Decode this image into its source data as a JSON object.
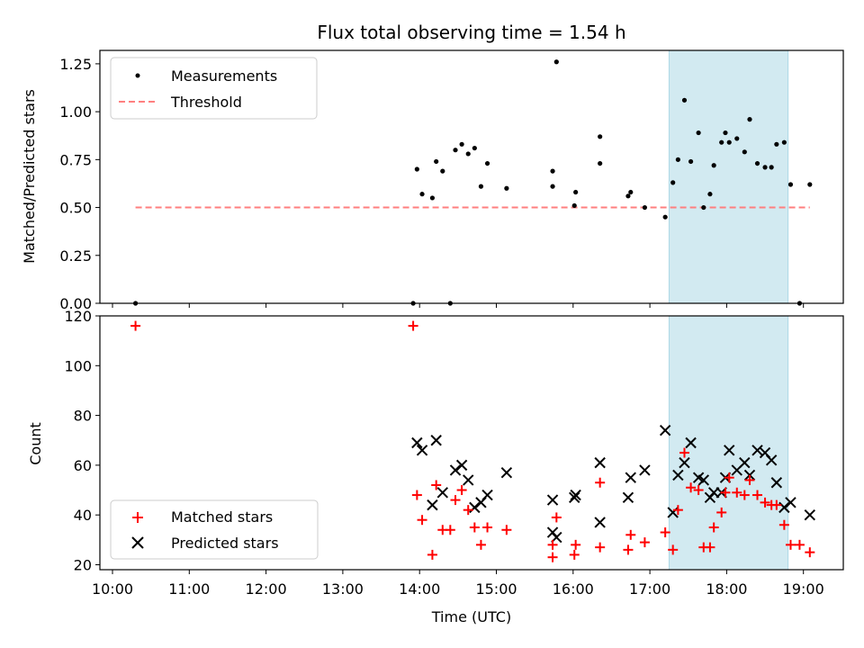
{
  "chart_data": [
    {
      "panel": "ratio",
      "type": "scatter",
      "title": "Flux total observing time = 1.54 h",
      "ylabel": "Matched/Predicted stars",
      "xlabel": "",
      "ylim": [
        0,
        1.32
      ],
      "yticks": [
        "0.00",
        "0.25",
        "0.50",
        "0.75",
        "1.00",
        "1.25"
      ],
      "legend_position": "upper-left",
      "series": [
        {
          "name": "Measurements",
          "color": "#000000",
          "marker": "dot",
          "x": [
            "10:18",
            "13:55",
            "13:58",
            "14:02",
            "14:10",
            "14:13",
            "14:18",
            "14:24",
            "14:28",
            "14:33",
            "14:38",
            "14:43",
            "14:48",
            "14:53",
            "15:08",
            "15:44",
            "15:44",
            "15:47",
            "16:01",
            "16:02",
            "16:21",
            "16:21",
            "16:43",
            "16:45",
            "16:56",
            "17:12",
            "17:18",
            "17:22",
            "17:27",
            "17:32",
            "17:38",
            "17:42",
            "17:47",
            "17:50",
            "17:56",
            "17:59",
            "18:02",
            "18:08",
            "18:14",
            "18:18",
            "18:24",
            "18:30",
            "18:35",
            "18:39",
            "18:45",
            "18:50",
            "18:57",
            "19:05"
          ],
          "y": [
            0.0,
            0.0,
            0.7,
            0.57,
            0.55,
            0.74,
            0.69,
            0.0,
            0.8,
            0.83,
            0.78,
            0.81,
            0.61,
            0.73,
            0.6,
            0.69,
            0.61,
            1.26,
            0.51,
            0.58,
            0.73,
            0.87,
            0.56,
            0.58,
            0.5,
            0.45,
            0.63,
            0.75,
            1.06,
            0.74,
            0.89,
            0.5,
            0.57,
            0.72,
            0.84,
            0.89,
            0.84,
            0.86,
            0.79,
            0.96,
            0.73,
            0.71,
            0.71,
            0.83,
            0.84,
            0.62,
            0.0,
            0.62
          ]
        },
        {
          "name": "Threshold",
          "color": "#ff7f7f",
          "style": "dashed",
          "x": [
            "10:18",
            "19:05"
          ],
          "y": [
            0.5,
            0.5
          ]
        }
      ],
      "highlight_span": {
        "x_start": "17:15",
        "x_end": "18:48",
        "color": "#add8e6"
      }
    },
    {
      "panel": "counts",
      "type": "scatter",
      "ylabel": "Count",
      "xlabel": "Time (UTC)",
      "ylim": [
        18,
        120
      ],
      "yticks": [
        "20",
        "40",
        "60",
        "80",
        "100",
        "120"
      ],
      "xticks": [
        "10:00",
        "11:00",
        "12:00",
        "13:00",
        "14:00",
        "15:00",
        "16:00",
        "17:00",
        "18:00",
        "19:00"
      ],
      "legend_position": "lower-left",
      "series": [
        {
          "name": "Matched stars",
          "color": "#ff0000",
          "marker": "plus",
          "x": [
            "10:18",
            "13:55",
            "13:58",
            "14:02",
            "14:10",
            "14:13",
            "14:18",
            "14:24",
            "14:28",
            "14:33",
            "14:38",
            "14:43",
            "14:48",
            "14:53",
            "15:08",
            "15:44",
            "15:44",
            "15:47",
            "16:01",
            "16:02",
            "16:21",
            "16:21",
            "16:43",
            "16:45",
            "16:56",
            "17:12",
            "17:18",
            "17:22",
            "17:27",
            "17:32",
            "17:38",
            "17:42",
            "17:47",
            "17:50",
            "17:56",
            "17:59",
            "18:02",
            "18:08",
            "18:14",
            "18:18",
            "18:24",
            "18:30",
            "18:35",
            "18:39",
            "18:45",
            "18:50",
            "18:57",
            "19:05"
          ],
          "y": [
            116,
            116,
            48,
            38,
            24,
            52,
            34,
            34,
            46,
            50,
            42,
            35,
            28,
            35,
            34,
            23,
            28,
            39,
            24,
            28,
            27,
            53,
            26,
            32,
            29,
            33,
            26,
            42,
            65,
            51,
            50,
            27,
            27,
            35,
            41,
            49,
            55,
            49,
            48,
            54,
            48,
            45,
            44,
            44,
            36,
            28,
            28,
            25
          ]
        },
        {
          "name": "Predicted stars",
          "color": "#000000",
          "marker": "x",
          "x": [
            "13:58",
            "14:02",
            "14:10",
            "14:13",
            "14:18",
            "14:28",
            "14:33",
            "14:38",
            "14:43",
            "14:48",
            "14:53",
            "15:08",
            "15:44",
            "15:44",
            "15:47",
            "16:01",
            "16:02",
            "16:21",
            "16:21",
            "16:43",
            "16:45",
            "16:56",
            "17:12",
            "17:18",
            "17:22",
            "17:27",
            "17:32",
            "17:38",
            "17:42",
            "17:47",
            "17:50",
            "17:56",
            "17:59",
            "18:02",
            "18:08",
            "18:14",
            "18:18",
            "18:24",
            "18:30",
            "18:35",
            "18:39",
            "18:45",
            "18:50",
            "19:05"
          ],
          "y": [
            69,
            66,
            44,
            70,
            49,
            58,
            60,
            54,
            43,
            45,
            48,
            57,
            46,
            33,
            31,
            47,
            48,
            37,
            61,
            47,
            55,
            58,
            74,
            41,
            56,
            61,
            69,
            55,
            54,
            47,
            49,
            49,
            55,
            66,
            58,
            61,
            56,
            66,
            65,
            62,
            53,
            43,
            45,
            40
          ]
        }
      ],
      "highlight_span": {
        "x_start": "17:15",
        "x_end": "18:48",
        "color": "#add8e6"
      }
    }
  ]
}
